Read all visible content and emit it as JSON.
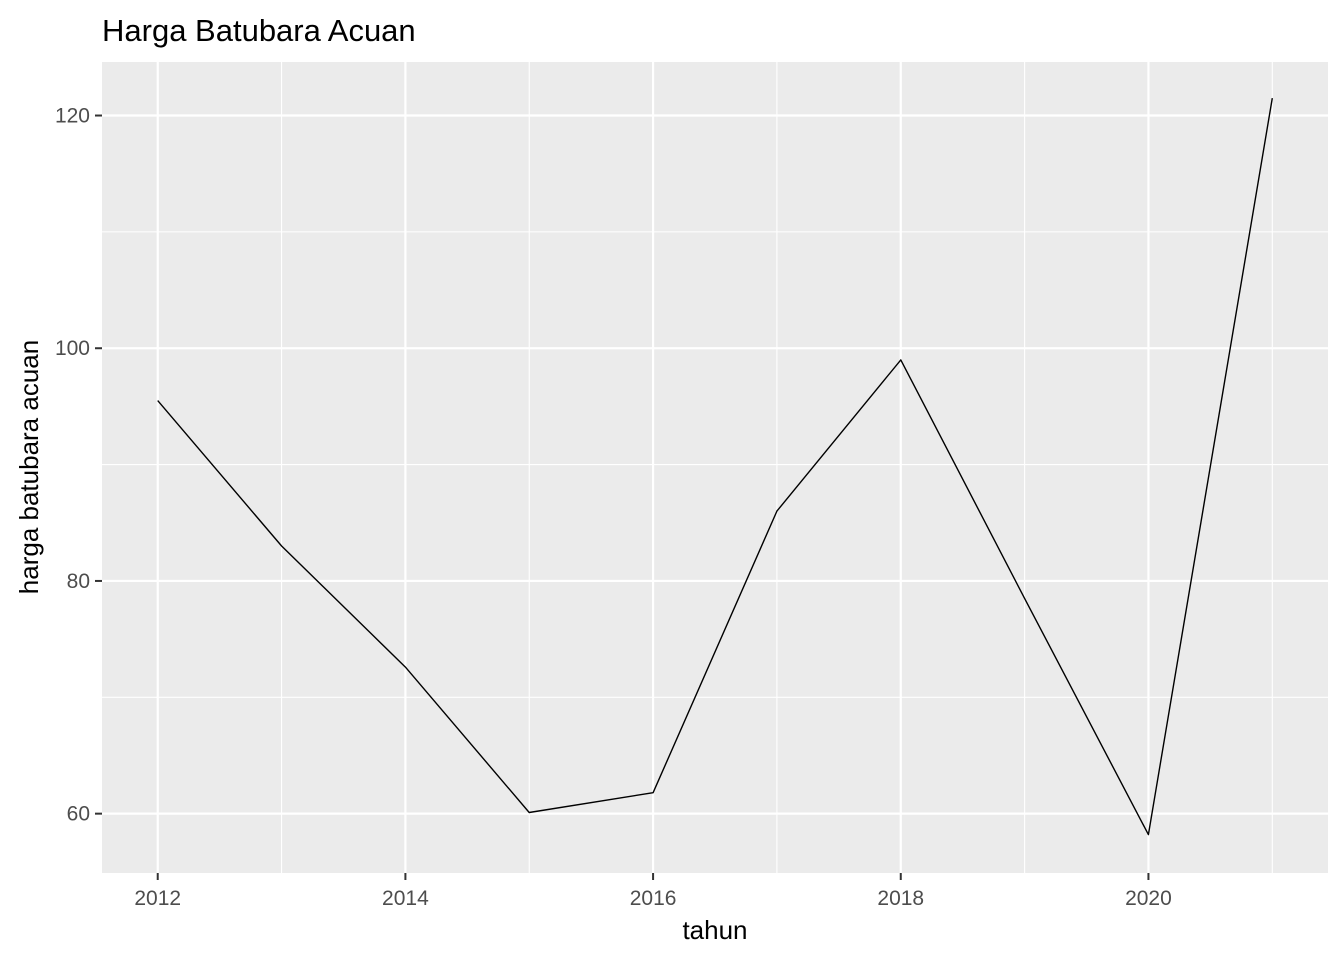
{
  "chart_data": {
    "type": "line",
    "title": "Harga Batubara Acuan",
    "xlabel": "tahun",
    "ylabel": "harga batubara acuan",
    "x": [
      2012,
      2013,
      2014,
      2015,
      2016,
      2017,
      2018,
      2019,
      2020,
      2021
    ],
    "series": [
      {
        "values": [
          95.5,
          83.0,
          72.6,
          60.1,
          61.8,
          86.0,
          99.0,
          78.5,
          58.2,
          121.5
        ]
      }
    ],
    "x_ticks": [
      "2012",
      "2014",
      "2016",
      "2018",
      "2020"
    ],
    "y_ticks": [
      "60",
      "80",
      "100",
      "120"
    ],
    "xlim": [
      2011.55,
      2021.45
    ],
    "ylim": [
      54.9,
      124.6
    ],
    "grid": true,
    "legend": "none",
    "colors": {
      "panel_background": "#ebebeb",
      "grid": "#ffffff",
      "line": "#000000",
      "tick_text": "#4d4d4d"
    }
  }
}
